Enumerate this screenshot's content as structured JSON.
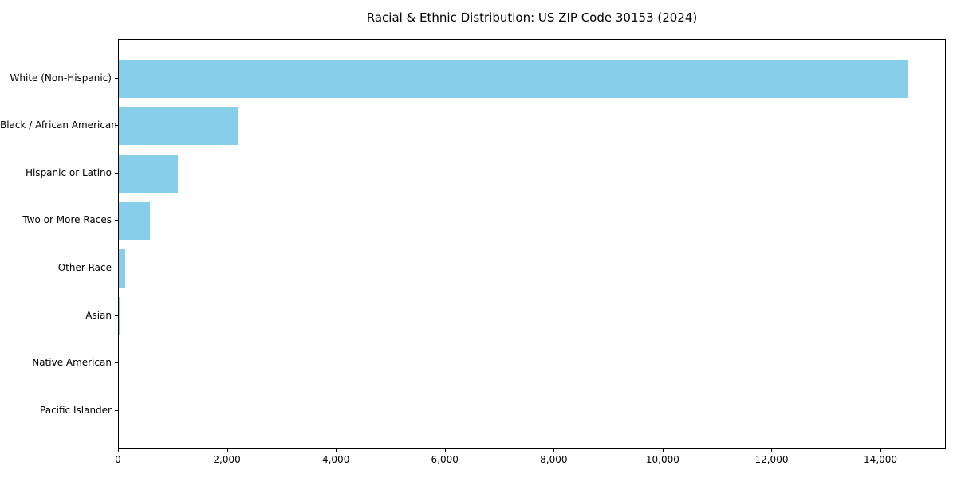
{
  "chart_data": {
    "type": "bar",
    "orientation": "horizontal",
    "title": "Racial & Ethnic Distribution: US ZIP Code 30153 (2024)",
    "categories": [
      "White (Non-Hispanic)",
      "Black / African American",
      "Hispanic or Latino",
      "Two or More Races",
      "Other Race",
      "Asian",
      "Native American",
      "Pacific Islander"
    ],
    "values": [
      14480,
      2190,
      1080,
      570,
      120,
      20,
      0,
      0
    ],
    "xlabel": "",
    "ylabel": "",
    "xlim": [
      0,
      15200
    ],
    "xticks": [
      0,
      2000,
      4000,
      6000,
      8000,
      10000,
      12000,
      14000
    ],
    "xtick_labels": [
      "0",
      "2,000",
      "4,000",
      "6,000",
      "8,000",
      "10,000",
      "12,000",
      "14,000"
    ],
    "bar_color": "#87CEEB",
    "axis_color": "#000000",
    "background_color": "#ffffff",
    "grid": false,
    "legend": "none"
  }
}
